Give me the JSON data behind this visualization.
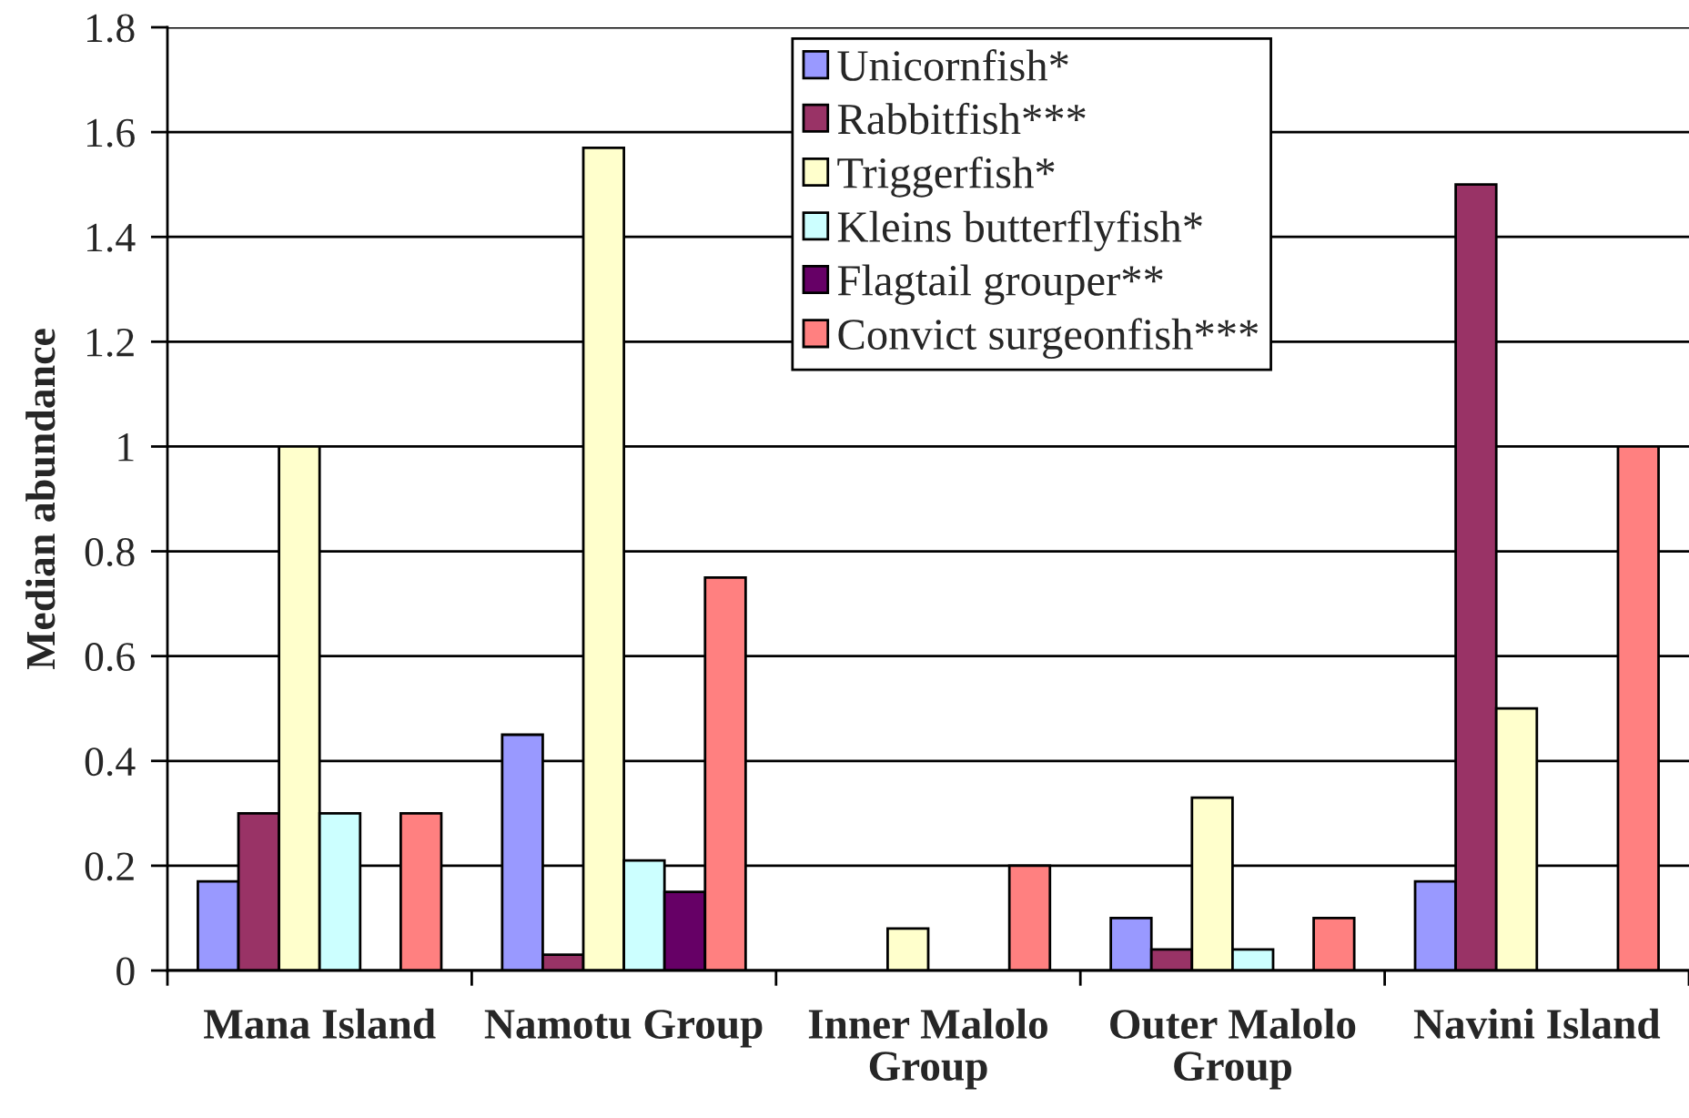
{
  "chart_data": {
    "type": "bar",
    "ylabel": "Median abundance",
    "categories": [
      "Mana Island",
      "Namotu Group",
      "Inner Malolo Group",
      "Outer Malolo Group",
      "Navini Island"
    ],
    "series": [
      {
        "name": "Unicornfish*",
        "color": "#9999ff",
        "values": [
          0.17,
          0.45,
          null,
          0.1,
          0.17
        ]
      },
      {
        "name": "Rabbitfish***",
        "color": "#993366",
        "values": [
          0.3,
          0.03,
          null,
          0.04,
          1.5
        ]
      },
      {
        "name": "Triggerfish*",
        "color": "#ffffcc",
        "values": [
          1,
          1.57,
          0.08,
          0.33,
          0.5
        ]
      },
      {
        "name": "Kleins butterflyfish*",
        "color": "#ccffff",
        "values": [
          0.3,
          0.21,
          null,
          0.04,
          null
        ]
      },
      {
        "name": "Flagtail grouper**",
        "color": "#660066",
        "values": [
          null,
          0.15,
          null,
          null,
          null
        ]
      },
      {
        "name": "Convict surgeonfish***",
        "color": "#ff8080",
        "values": [
          0.3,
          0.75,
          0.2,
          0.1,
          1
        ]
      }
    ],
    "ylim": [
      0,
      1.8
    ],
    "yticks": [
      0,
      0.2,
      0.4,
      0.6,
      0.8,
      1,
      1.2,
      1.4,
      1.6,
      1.8
    ],
    "grid": "y",
    "legend": "top"
  }
}
